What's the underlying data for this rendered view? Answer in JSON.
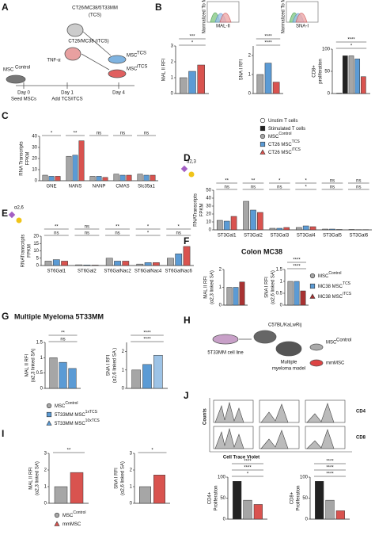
{
  "panel_labels": [
    "A",
    "B",
    "C",
    "D",
    "E",
    "F",
    "G",
    "H",
    "I",
    "J"
  ],
  "diagram_a": [
    "CT26/MC38/5T33MM",
    "(TCS)",
    "CT26/MC38 (iTCS)",
    "TNF-α",
    "MSC",
    "Control",
    "Day 0",
    "Seed MSCs",
    "Day 1",
    "Add TCS/iTCS",
    "Day 4",
    "MSC",
    "TCS",
    "MSC",
    "iTCS"
  ],
  "diagram_h": [
    "C57BL/KaLwRij",
    "5T33MM cell line",
    "Multiple",
    "myeloma model",
    "MSC",
    "Control",
    "mmMSC"
  ],
  "insets_b": [
    "Normalized To Mode",
    "MAL-II",
    "Normalized To Mode",
    "SNA-I"
  ],
  "flow_j": [
    "CD4",
    "CD8",
    "Counts",
    "Cell Trace Violet"
  ],
  "headings": [
    "Colon MC38",
    "Multiple Myeloma 5T33MM"
  ],
  "charts": [
    {
      "type": "bar",
      "ylabel": [
        "MAL II RFI"
      ],
      "categories": [
        null
      ],
      "series": [
        {
          "color": "#a6a6a6",
          "values": [
            1.0
          ]
        },
        {
          "color": "#5b9bd5",
          "values": [
            1.4
          ]
        },
        {
          "color": "#d9534f",
          "values": [
            1.8
          ]
        }
      ],
      "ylim": [
        0,
        3
      ],
      "yticks": [
        0,
        1,
        2,
        3
      ],
      "significance": [
        [
          "***"
        ],
        [
          "*"
        ]
      ]
    },
    {
      "type": "bar",
      "ylabel": [
        "SNA I RFI"
      ],
      "categories": [
        null
      ],
      "series": [
        {
          "color": "#a6a6a6",
          "values": [
            1.0
          ]
        },
        {
          "color": "#5b9bd5",
          "values": [
            1.6
          ]
        },
        {
          "color": "#d9534f",
          "values": [
            0.6
          ]
        }
      ],
      "ylim": [
        0,
        2.5
      ],
      "yticks": [
        0,
        1,
        2
      ],
      "significance": [
        [
          "****"
        ],
        [
          "****"
        ]
      ]
    },
    {
      "type": "bar",
      "ylabel": [
        "CD8+",
        "proliferation"
      ],
      "categories": [
        null
      ],
      "series": [
        {
          "color": "#ffffff",
          "values": [
            1
          ]
        },
        {
          "color": "#222222",
          "values": [
            85
          ]
        },
        {
          "color": "#a6a6a6",
          "values": [
            85
          ]
        },
        {
          "color": "#5b9bd5",
          "values": [
            78
          ]
        },
        {
          "color": "#d9534f",
          "values": [
            38
          ]
        }
      ],
      "ylim": [
        0,
        100
      ],
      "yticks": [
        0,
        50,
        100
      ],
      "significance": [
        [
          "****"
        ],
        [
          "*"
        ]
      ]
    },
    {
      "type": "bar",
      "ylabel": [
        "RNA Transcripts",
        "FPKM"
      ],
      "categories": [
        "GNE",
        "NANS",
        "NANP",
        "CMAS",
        "Slc35a1"
      ],
      "series": [
        {
          "color": "#a6a6a6",
          "values": [
            5,
            22,
            4,
            6,
            6
          ]
        },
        {
          "color": "#5b9bd5",
          "values": [
            4,
            23,
            4,
            5,
            5
          ]
        },
        {
          "color": "#d9534f",
          "values": [
            4,
            36,
            3,
            5,
            5
          ]
        }
      ],
      "ylim": [
        0,
        40
      ],
      "yticks": [
        0,
        10,
        20,
        30,
        40
      ],
      "significance": [
        [
          "*",
          "**",
          "ns",
          "ns",
          "ns"
        ]
      ]
    },
    {
      "type": "bar",
      "glycan": "α2,3",
      "ylabel": [
        "RNATranscripts",
        "FPKM"
      ],
      "categories": [
        "ST3Gal1",
        "ST3Gal2",
        "ST3Gal3",
        "ST3Gal4",
        "ST3Gal5",
        "ST3Gal6"
      ],
      "series": [
        {
          "color": "#a6a6a6",
          "values": [
            12,
            36,
            2,
            3,
            1,
            0.5
          ]
        },
        {
          "color": "#5b9bd5",
          "values": [
            11,
            25,
            2,
            5,
            1,
            0.3
          ]
        },
        {
          "color": "#d9534f",
          "values": [
            17,
            22,
            3,
            4,
            0.5,
            0.3
          ]
        }
      ],
      "ylim": [
        0,
        50
      ],
      "yticks": [
        0,
        10,
        20,
        30,
        40,
        50
      ],
      "significance": [
        [
          "**",
          "**",
          "*",
          "*",
          "ns",
          "ns"
        ],
        [
          "ns",
          "ns",
          "ns",
          "*",
          "ns",
          "ns"
        ]
      ]
    },
    {
      "type": "bar",
      "glycan": "α2,6",
      "ylabel": [
        "RNATranscripts",
        "FPKM"
      ],
      "categories": [
        "ST6Gal1",
        "ST6Gal2",
        "ST6GalNac2",
        "ST6GalNac4",
        "ST6GalNac6"
      ],
      "series": [
        {
          "color": "#a6a6a6",
          "values": [
            3,
            0.5,
            5,
            1,
            5
          ]
        },
        {
          "color": "#5b9bd5",
          "values": [
            4,
            0.4,
            3,
            2,
            8
          ]
        },
        {
          "color": "#d9534f",
          "values": [
            3,
            0.3,
            3,
            2,
            13
          ]
        }
      ],
      "ylim": [
        0,
        20
      ],
      "yticks": [
        0,
        5,
        10,
        15,
        20
      ],
      "significance": [
        [
          "**",
          "ns",
          "**",
          "*",
          "*"
        ],
        [
          "ns",
          "ns",
          "ns",
          "*",
          "ns"
        ]
      ]
    },
    {
      "type": "bar",
      "ylabel": [
        "MAL II RFI",
        "(α2,3 linked SA)"
      ],
      "categories": [
        null
      ],
      "series": [
        {
          "color": "#a6a6a6",
          "values": [
            1.0
          ]
        },
        {
          "color": "#5b9bd5",
          "values": [
            1.0
          ]
        },
        {
          "color": "#a83232",
          "values": [
            1.3
          ]
        }
      ],
      "ylim": [
        0,
        2
      ],
      "yticks": [
        0,
        1,
        2
      ],
      "significance": []
    },
    {
      "type": "bar",
      "ylabel": [
        "SNA I RFI",
        "(α2,6 linked SA)"
      ],
      "categories": [
        null
      ],
      "series": [
        {
          "color": "#a6a6a6",
          "values": [
            1.0
          ]
        },
        {
          "color": "#5b9bd5",
          "values": [
            1.0
          ]
        },
        {
          "color": "#a83232",
          "values": [
            0.6
          ]
        }
      ],
      "ylim": [
        0,
        1.5
      ],
      "yticks": [
        0,
        0.5,
        1,
        1.5
      ],
      "significance": [
        [
          "****"
        ],
        [
          "****"
        ]
      ]
    },
    {
      "type": "bar",
      "ylabel": [
        "MAL II RFI",
        "(α2,3 linked SA)"
      ],
      "categories": [
        null
      ],
      "series": [
        {
          "color": "#a6a6a6",
          "values": [
            1.0
          ]
        },
        {
          "color": "#5b9bd5",
          "values": [
            0.85
          ]
        },
        {
          "color": "#5b9bd5",
          "values": [
            0.65
          ]
        }
      ],
      "ylim": [
        0,
        1.5
      ],
      "yticks": [
        0,
        0.5,
        1,
        1.5
      ],
      "significance": [
        [
          "**"
        ],
        [
          "ns"
        ]
      ]
    },
    {
      "type": "bar",
      "ylabel": [
        "SNA I RFI",
        "(α2,6 linked SA )"
      ],
      "categories": [
        null
      ],
      "series": [
        {
          "color": "#a6a6a6",
          "values": [
            1.0
          ]
        },
        {
          "color": "#5b9bd5",
          "values": [
            1.3
          ]
        },
        {
          "color": "#9dc3e6",
          "values": [
            1.8
          ]
        }
      ],
      "ylim": [
        0,
        2.5
      ],
      "yticks": [
        0,
        1,
        2
      ],
      "significance": [
        [
          "****"
        ],
        [
          "****"
        ]
      ]
    },
    {
      "type": "bar",
      "ylabel": [
        "MAL II RFI",
        "(α2,3 linked SA)"
      ],
      "categories": [
        null
      ],
      "series": [
        {
          "color": "#a6a6a6",
          "values": [
            1.0
          ]
        },
        {
          "color": "#d9534f",
          "values": [
            1.85
          ]
        }
      ],
      "ylim": [
        0,
        3
      ],
      "yticks": [
        0,
        1,
        2,
        3
      ],
      "significance": [
        [
          "**"
        ]
      ]
    },
    {
      "type": "bar",
      "ylabel": [
        "SNA I RFI",
        "(α2,6 linked SA)"
      ],
      "categories": [
        null
      ],
      "series": [
        {
          "color": "#a6a6a6",
          "values": [
            1.0
          ]
        },
        {
          "color": "#d9534f",
          "values": [
            1.7
          ]
        }
      ],
      "ylim": [
        0,
        3
      ],
      "yticks": [
        0,
        1,
        2,
        3
      ],
      "significance": [
        [
          "*"
        ]
      ]
    },
    {
      "type": "bar",
      "ylabel": [
        "CD4+",
        "Proliferation"
      ],
      "categories": [
        null
      ],
      "series": [
        {
          "color": "#222222",
          "values": [
            90
          ]
        },
        {
          "color": "#a6a6a6",
          "values": [
            45
          ]
        },
        {
          "color": "#d9534f",
          "values": [
            35
          ]
        }
      ],
      "ylim": [
        0,
        100
      ],
      "yticks": [
        0,
        50,
        100
      ],
      "significance": [
        [
          "****"
        ],
        [
          "****"
        ],
        [
          "*"
        ]
      ]
    },
    {
      "type": "bar",
      "ylabel": [
        "CD8+",
        "Proliferation"
      ],
      "categories": [
        null
      ],
      "series": [
        {
          "color": "#222222",
          "values": [
            90
          ]
        },
        {
          "color": "#a6a6a6",
          "values": [
            45
          ]
        },
        {
          "color": "#d9534f",
          "values": [
            20
          ]
        }
      ],
      "ylim": [
        0,
        100
      ],
      "yticks": [
        0,
        50,
        100
      ],
      "significance": [
        [
          "****"
        ],
        [
          "****"
        ],
        [
          "****"
        ]
      ]
    }
  ],
  "legends": [
    {
      "entries": [
        {
          "name": "Unstim T cells",
          "color": "#ffffff",
          "marker": "circle"
        },
        {
          "name": "Stimulated T cells",
          "color": "#222222",
          "marker": "square"
        },
        {
          "name": "MSC",
          "sup": "Control",
          "color": "#a6a6a6",
          "marker": "circle"
        },
        {
          "name": "CT26 MSC",
          "sup": "TCS",
          "color": "#5b9bd5",
          "marker": "square"
        },
        {
          "name": "CT26 MSC",
          "sup": "iTCS",
          "color": "#d9534f",
          "marker": "triangle"
        }
      ]
    },
    {
      "entries": [
        {
          "name": "MSC",
          "sup": "Control",
          "color": "#a6a6a6",
          "marker": "circle"
        },
        {
          "name": "MC38 MSC",
          "sup": "TCS",
          "color": "#5b9bd5",
          "marker": "square"
        },
        {
          "name": "MC38 MSC",
          "sup": "iTCS",
          "color": "#a83232",
          "marker": "triangle"
        }
      ]
    },
    {
      "entries": [
        {
          "name": "MSC",
          "sup": "Control",
          "color": "#a6a6a6",
          "marker": "circle"
        },
        {
          "name": "5T33MM MSC",
          "sup": "1xTCS",
          "color": "#5b9bd5",
          "marker": "square"
        },
        {
          "name": "5T33MM MSC",
          "sup": "10xTCS",
          "color": "#5b9bd5",
          "marker": "triangle"
        }
      ]
    },
    {
      "entries": [
        {
          "name": "MSC",
          "sup": "Control",
          "color": "#a6a6a6",
          "marker": "circle"
        },
        {
          "name": "mmMSC",
          "color": "#d9534f",
          "marker": "triangle"
        }
      ]
    }
  ]
}
